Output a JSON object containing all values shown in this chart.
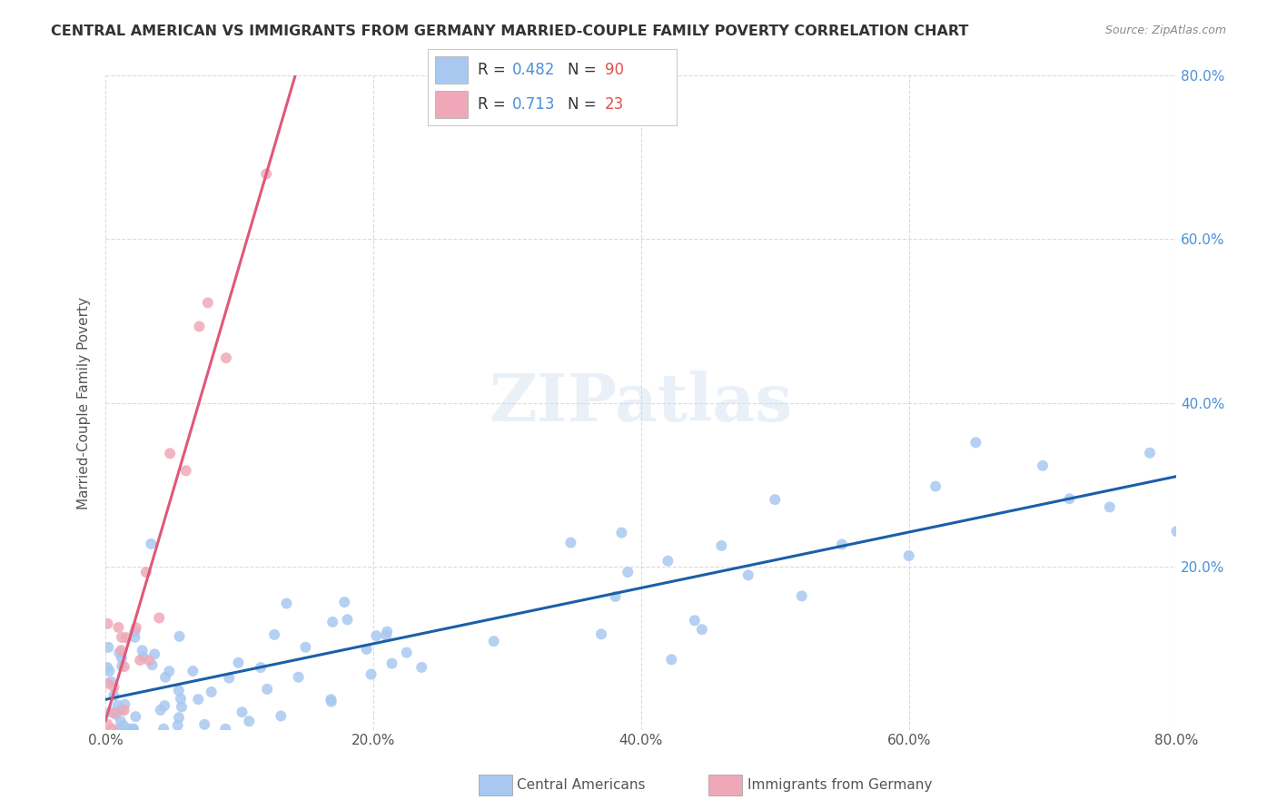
{
  "title": "CENTRAL AMERICAN VS IMMIGRANTS FROM GERMANY MARRIED-COUPLE FAMILY POVERTY CORRELATION CHART",
  "source": "Source: ZipAtlas.com",
  "ylabel": "Married-Couple Family Poverty",
  "xlim": [
    0,
    0.8
  ],
  "ylim": [
    0,
    0.8
  ],
  "xtick_vals": [
    0.0,
    0.2,
    0.4,
    0.6,
    0.8
  ],
  "ytick_vals": [
    0.2,
    0.4,
    0.6,
    0.8
  ],
  "r_blue": 0.482,
  "n_blue": 90,
  "r_pink": 0.713,
  "n_pink": 23,
  "legend_label_blue": "Central Americans",
  "legend_label_pink": "Immigrants from Germany",
  "watermark": "ZIPatlas",
  "blue_color": "#a8c8f0",
  "pink_color": "#f0a8b8",
  "blue_line_color": "#1a5fa8",
  "pink_line_color": "#e05878",
  "grid_color": "#cccccc",
  "background_color": "#ffffff"
}
